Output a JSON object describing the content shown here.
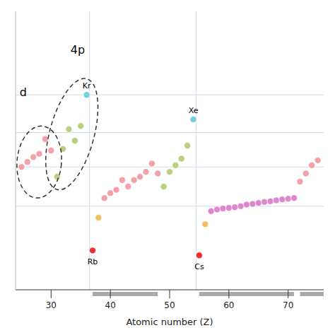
{
  "chart_data": {
    "type": "scatter",
    "xlabel": "Atomic number (Z)",
    "x": [
      25,
      26,
      27,
      28,
      29,
      30,
      31,
      32,
      33,
      34,
      35,
      36,
      37,
      38,
      39,
      40,
      41,
      42,
      43,
      44,
      45,
      46,
      47,
      48,
      49,
      50,
      51,
      52,
      53,
      54,
      55,
      56,
      57,
      58,
      59,
      60,
      61,
      62,
      63,
      64,
      65,
      66,
      67,
      68,
      69,
      70,
      71,
      72,
      73,
      74,
      75
    ],
    "values": [
      0.475,
      0.49,
      0.505,
      0.515,
      0.56,
      0.525,
      0.445,
      0.53,
      0.59,
      0.555,
      0.6,
      0.695,
      0.22,
      0.32,
      0.38,
      0.395,
      0.405,
      0.435,
      0.415,
      0.435,
      0.445,
      0.46,
      0.485,
      0.455,
      0.415,
      0.46,
      0.48,
      0.5,
      0.54,
      0.62,
      0.205,
      0.3,
      0.34,
      0.345,
      0.348,
      0.35,
      0.352,
      0.355,
      0.36,
      0.362,
      0.365,
      0.368,
      0.37,
      0.373,
      0.376,
      0.378,
      0.38,
      0.43,
      0.455,
      0.48,
      0.495
    ],
    "colors": [
      "#f4a0a8",
      "#f4a0a8",
      "#f4a0a8",
      "#f4a0a8",
      "#f4a0a8",
      "#f4a0a8",
      "#b8d080",
      "#b8d080",
      "#b8d080",
      "#b8d080",
      "#b8d080",
      "#70d0e0",
      "#e83030",
      "#f0c060",
      "#f4a0a8",
      "#f4a0a8",
      "#f4a0a8",
      "#f4a0a8",
      "#f4a0a8",
      "#f4a0a8",
      "#f4a0a8",
      "#f4a0a8",
      "#f4a0a8",
      "#f4a0a8",
      "#b8d080",
      "#b8d080",
      "#b8d080",
      "#b8d080",
      "#b8d080",
      "#70d0e0",
      "#e83030",
      "#f0c060",
      "#dd88cc",
      "#dd88cc",
      "#dd88cc",
      "#dd88cc",
      "#dd88cc",
      "#dd88cc",
      "#dd88cc",
      "#dd88cc",
      "#dd88cc",
      "#dd88cc",
      "#dd88cc",
      "#dd88cc",
      "#dd88cc",
      "#dd88cc",
      "#dd88cc",
      "#f4a0a8",
      "#f4a0a8",
      "#f4a0a8",
      "#f4a0a8"
    ],
    "labels": [
      null,
      null,
      null,
      null,
      null,
      null,
      null,
      null,
      null,
      null,
      null,
      "Kr",
      "Rb",
      null,
      null,
      null,
      null,
      null,
      null,
      null,
      null,
      null,
      null,
      null,
      null,
      null,
      null,
      null,
      null,
      "Xe",
      "Cs",
      null,
      null,
      null,
      null,
      null,
      null,
      null,
      null,
      null,
      null,
      null,
      null,
      null,
      null,
      null,
      null,
      null,
      null,
      null,
      null
    ],
    "xlim": [
      24,
      76
    ],
    "xticks": [
      30,
      40,
      50,
      60,
      70
    ],
    "ylim": [
      0.1,
      0.95
    ],
    "tick_labels": "x",
    "hlines": [
      0.695,
      0.58,
      0.475,
      0.355
    ],
    "vlines": [
      36.5,
      54.5
    ],
    "annotations": [
      {
        "text": "4p",
        "x": 34.5,
        "y": 0.83
      },
      {
        "text": "d",
        "x": 25.3,
        "y": 0.7
      }
    ],
    "ellipses": [
      {
        "x": 33.5,
        "y": 0.575,
        "width": 7.5,
        "height": 0.35
      },
      {
        "x": 28.0,
        "y": 0.49,
        "width": 7.5,
        "height": 0.22
      }
    ],
    "block_bars": [
      {
        "start": 37,
        "end": 48
      },
      {
        "start": 55,
        "end": 71
      },
      {
        "start": 72,
        "end": 76
      }
    ]
  }
}
